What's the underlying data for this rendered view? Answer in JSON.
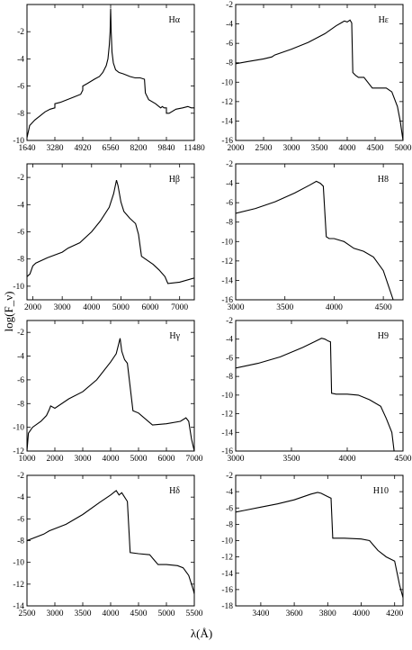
{
  "figure": {
    "ylabel": "log(F_ν)",
    "xlabel": "λ(Å)"
  },
  "chart_data": [
    {
      "type": "line",
      "annotation": "Hα",
      "xlim": [
        1640,
        11480
      ],
      "ylim": [
        -10,
        0
      ],
      "xticks": [
        1640,
        3280,
        4920,
        6560,
        8200,
        9840,
        11480
      ],
      "yticks": [
        -10,
        -8,
        -6,
        -4,
        -2
      ],
      "series": [
        {
          "x": [
            1640,
            1800,
            2100,
            2400,
            2700,
            3000,
            3279,
            3281,
            3600,
            4000,
            4400,
            4800,
            4919,
            4921,
            5200,
            5600,
            5900,
            6100,
            6300,
            6400,
            6480,
            6530,
            6560,
            6590,
            6640,
            6720,
            6850,
            7050,
            7300,
            7500,
            7700,
            8000,
            8300,
            8550,
            8600,
            8800,
            9200,
            9400,
            9500,
            9600,
            9700,
            9839,
            9841,
            10000,
            10400,
            10800,
            11100,
            11300,
            11480
          ],
          "y": [
            -9.8,
            -8.9,
            -8.5,
            -8.2,
            -7.9,
            -7.7,
            -7.6,
            -7.3,
            -7.2,
            -7.0,
            -6.8,
            -6.6,
            -6.3,
            -6.0,
            -5.8,
            -5.5,
            -5.3,
            -5.0,
            -4.5,
            -4.0,
            -3.0,
            -2.0,
            -0.3,
            -2.0,
            -3.5,
            -4.3,
            -4.8,
            -5.0,
            -5.1,
            -5.2,
            -5.3,
            -5.4,
            -5.4,
            -5.5,
            -6.5,
            -7.0,
            -7.3,
            -7.5,
            -7.6,
            -7.5,
            -7.6,
            -7.6,
            -8.0,
            -8.0,
            -7.7,
            -7.6,
            -7.5,
            -7.6,
            -7.6
          ]
        }
      ]
    },
    {
      "type": "line",
      "annotation": "Hε",
      "xlim": [
        2000,
        5000
      ],
      "ylim": [
        -16,
        -2
      ],
      "xticks": [
        2000,
        2500,
        3000,
        3500,
        4000,
        4500,
        5000
      ],
      "yticks": [
        -16,
        -14,
        -12,
        -10,
        -8,
        -6,
        -4,
        -2
      ],
      "series": [
        {
          "x": [
            2000,
            2200,
            2500,
            2650,
            2700,
            3000,
            3300,
            3600,
            3800,
            3950,
            4000,
            4050,
            4080,
            4100,
            4150,
            4200,
            4300,
            4450,
            4550,
            4700,
            4800,
            4900,
            4950,
            5000
          ],
          "y": [
            -8.1,
            -7.9,
            -7.6,
            -7.4,
            -7.2,
            -6.6,
            -5.9,
            -5.0,
            -4.2,
            -3.7,
            -3.8,
            -3.6,
            -3.9,
            -9.0,
            -9.3,
            -9.5,
            -9.5,
            -10.6,
            -10.6,
            -10.6,
            -11.0,
            -12.5,
            -14.0,
            -16.0
          ]
        }
      ]
    },
    {
      "type": "line",
      "annotation": "Hβ",
      "xlim": [
        1800,
        7500
      ],
      "ylim": [
        -11,
        -1
      ],
      "xticks": [
        2000,
        3000,
        4000,
        5000,
        6000,
        7000
      ],
      "yticks": [
        -10,
        -8,
        -6,
        -4,
        -2
      ],
      "series": [
        {
          "x": [
            1800,
            1900,
            2000,
            2100,
            2500,
            3000,
            3200,
            3600,
            4000,
            4300,
            4600,
            4750,
            4850,
            4900,
            5000,
            5100,
            5300,
            5500,
            5600,
            5700,
            5900,
            6100,
            6300,
            6500,
            6600,
            7000,
            7500
          ],
          "y": [
            -9.3,
            -9.1,
            -8.5,
            -8.3,
            -7.9,
            -7.5,
            -7.2,
            -6.8,
            -6.0,
            -5.2,
            -4.2,
            -3.2,
            -2.2,
            -2.6,
            -3.8,
            -4.5,
            -5.0,
            -5.4,
            -6.2,
            -7.8,
            -8.1,
            -8.4,
            -8.8,
            -9.3,
            -9.8,
            -9.7,
            -9.4
          ]
        }
      ]
    },
    {
      "type": "line",
      "annotation": "H8",
      "xlim": [
        3000,
        4700
      ],
      "ylim": [
        -16,
        -2
      ],
      "xticks": [
        3000,
        3500,
        4000,
        4500
      ],
      "yticks": [
        -16,
        -14,
        -12,
        -10,
        -8,
        -6,
        -4,
        -2
      ],
      "series": [
        {
          "x": [
            3000,
            3200,
            3400,
            3600,
            3750,
            3820,
            3860,
            3890,
            3920,
            3950,
            4000,
            4100,
            4200,
            4300,
            4400,
            4500,
            4550,
            4600
          ],
          "y": [
            -7.1,
            -6.6,
            -5.9,
            -5.0,
            -4.2,
            -3.8,
            -4.0,
            -4.3,
            -9.5,
            -9.7,
            -9.7,
            -10.0,
            -10.7,
            -11.0,
            -11.6,
            -13.0,
            -14.5,
            -16.0
          ]
        }
      ]
    },
    {
      "type": "line",
      "annotation": "Hγ",
      "xlim": [
        1000,
        7000
      ],
      "ylim": [
        -12,
        -1
      ],
      "xticks": [
        1000,
        2000,
        3000,
        4000,
        5000,
        6000,
        7000
      ],
      "yticks": [
        -12,
        -10,
        -8,
        -6,
        -4,
        -2
      ],
      "series": [
        {
          "x": [
            1000,
            1050,
            1200,
            1500,
            1700,
            1800,
            1850,
            2000,
            2500,
            3000,
            3500,
            4000,
            4200,
            4340,
            4400,
            4500,
            4600,
            4800,
            5000,
            5500,
            6000,
            6500,
            6700,
            6800,
            6900,
            7000
          ],
          "y": [
            -12.0,
            -10.5,
            -10.0,
            -9.5,
            -9.0,
            -8.5,
            -8.2,
            -8.4,
            -7.6,
            -7.0,
            -6.0,
            -4.5,
            -3.8,
            -2.5,
            -3.6,
            -4.3,
            -4.6,
            -8.6,
            -8.8,
            -9.8,
            -9.7,
            -9.5,
            -9.2,
            -9.5,
            -11.0,
            -12.0
          ]
        }
      ]
    },
    {
      "type": "line",
      "annotation": "H9",
      "xlim": [
        3000,
        4500
      ],
      "ylim": [
        -16,
        -2
      ],
      "xticks": [
        3000,
        3500,
        4000,
        4500
      ],
      "yticks": [
        -16,
        -14,
        -12,
        -10,
        -8,
        -6,
        -4,
        -2
      ],
      "series": [
        {
          "x": [
            3000,
            3200,
            3400,
            3600,
            3720,
            3770,
            3800,
            3830,
            3850,
            3860,
            3900,
            4000,
            4100,
            4200,
            4300,
            4350,
            4400,
            4420
          ],
          "y": [
            -7.1,
            -6.6,
            -5.9,
            -4.9,
            -4.2,
            -3.9,
            -4.0,
            -4.2,
            -4.3,
            -9.8,
            -9.9,
            -9.9,
            -10.0,
            -10.5,
            -11.2,
            -12.5,
            -14.0,
            -16.0
          ]
        }
      ]
    },
    {
      "type": "line",
      "annotation": "Hδ",
      "xlim": [
        2500,
        5500
      ],
      "ylim": [
        -14,
        -2
      ],
      "xticks": [
        2500,
        3000,
        3500,
        4000,
        4500,
        5000,
        5500
      ],
      "yticks": [
        -14,
        -12,
        -10,
        -8,
        -6,
        -4,
        -2
      ],
      "series": [
        {
          "x": [
            2500,
            2800,
            2900,
            3200,
            3500,
            3800,
            4000,
            4100,
            4150,
            4200,
            4250,
            4300,
            4350,
            4500,
            4700,
            4800,
            4850,
            5000,
            5200,
            5300,
            5400,
            5480,
            5500
          ],
          "y": [
            -8.0,
            -7.4,
            -7.1,
            -6.5,
            -5.6,
            -4.5,
            -3.8,
            -3.4,
            -3.8,
            -3.6,
            -4.0,
            -4.4,
            -9.1,
            -9.2,
            -9.3,
            -9.9,
            -10.2,
            -10.2,
            -10.3,
            -10.5,
            -11.2,
            -12.5,
            -12.9
          ]
        }
      ]
    },
    {
      "type": "line",
      "annotation": "H10",
      "xlim": [
        3250,
        4250
      ],
      "ylim": [
        -18,
        -2
      ],
      "xticks": [
        3400,
        3600,
        3800,
        4000,
        4200
      ],
      "yticks": [
        -18,
        -16,
        -14,
        -12,
        -10,
        -8,
        -6,
        -4,
        -2
      ],
      "series": [
        {
          "x": [
            3250,
            3300,
            3400,
            3500,
            3600,
            3700,
            3740,
            3760,
            3800,
            3820,
            3830,
            3900,
            4000,
            4050,
            4100,
            4150,
            4200,
            4230,
            4250
          ],
          "y": [
            -6.5,
            -6.3,
            -5.9,
            -5.5,
            -5.0,
            -4.3,
            -4.1,
            -4.2,
            -4.6,
            -4.8,
            -9.7,
            -9.7,
            -9.8,
            -10.0,
            -11.2,
            -12.0,
            -12.5,
            -15.5,
            -17.0
          ]
        }
      ]
    }
  ]
}
